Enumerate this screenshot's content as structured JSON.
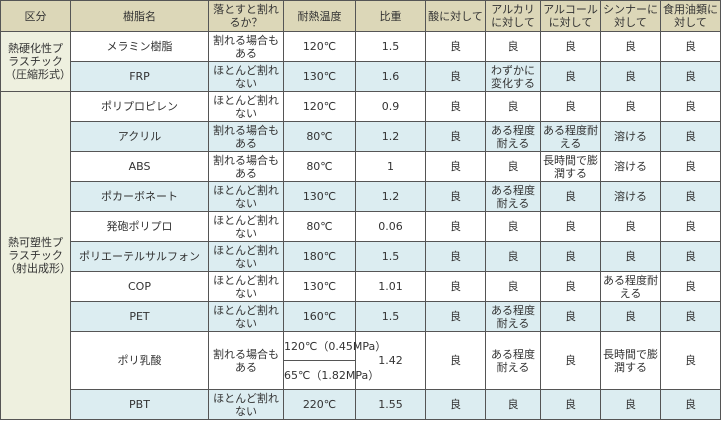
{
  "headers": [
    "区分",
    "樹脂名",
    "落とすと割れるか？",
    "耐熱温度",
    "比重",
    "酸に対して",
    "アルカリに対して",
    "アルコールに対して",
    "シンナーに対して",
    "食用油類に対して"
  ],
  "categories": [
    {
      "label": "熱硬化性プラスチック（圧縮形式）",
      "rows": 2
    },
    {
      "label": "熱可塑性プラスチック（射出成形）",
      "rows": 10
    }
  ],
  "rows": [
    {
      "name": "メラミン樹脂",
      "drop": "割れる場合もある",
      "temp": "120℃",
      "sg": "1.5",
      "acid": "良",
      "alkali": "良",
      "alcohol": "良",
      "thinner": "良",
      "oil": "良"
    },
    {
      "name": "FRP",
      "drop": "ほとんど割れない",
      "temp": "130℃",
      "sg": "1.6",
      "acid": "良",
      "alkali": "わずかに変化する",
      "alcohol": "良",
      "thinner": "良",
      "oil": "良"
    },
    {
      "name": "ポリプロピレン",
      "drop": "ほとんど割れない",
      "temp": "120℃",
      "sg": "0.9",
      "acid": "良",
      "alkali": "良",
      "alcohol": "良",
      "thinner": "良",
      "oil": "良"
    },
    {
      "name": "アクリル",
      "drop": "割れる場合もある",
      "temp": "80℃",
      "sg": "1.2",
      "acid": "良",
      "alkali": "ある程度耐える",
      "alcohol": "ある程度耐える",
      "thinner": "溶ける",
      "oil": "良"
    },
    {
      "name": "ABS",
      "drop": "割れる場合もある",
      "temp": "80℃",
      "sg": "1",
      "acid": "良",
      "alkali": "良",
      "alcohol": "長時間で膨潤する",
      "thinner": "溶ける",
      "oil": "良"
    },
    {
      "name": "ポカーボネート",
      "drop": "ほとんど割れない",
      "temp": "130℃",
      "sg": "1.2",
      "acid": "良",
      "alkali": "ある程度耐える",
      "alcohol": "良",
      "thinner": "溶ける",
      "oil": "良"
    },
    {
      "name": "発砲ポリプロ",
      "drop": "ほとんど割れない",
      "temp": "80℃",
      "sg": "0.06",
      "acid": "良",
      "alkali": "良",
      "alcohol": "良",
      "thinner": "良",
      "oil": "良"
    },
    {
      "name": "ポリエーテルサルフォン",
      "drop": "ほとんど割れない",
      "temp": "180℃",
      "sg": "1.5",
      "acid": "良",
      "alkali": "良",
      "alcohol": "良",
      "thinner": "良",
      "oil": "良"
    },
    {
      "name": "COP",
      "drop": "ほとんど割れない",
      "temp": "130℃",
      "sg": "1.01",
      "acid": "良",
      "alkali": "良",
      "alcohol": "良",
      "thinner": "ある程度耐える",
      "oil": "良"
    },
    {
      "name": "PET",
      "drop": "ほとんど割れない",
      "temp": "160℃",
      "sg": "1.5",
      "acid": "良",
      "alkali": "ある程度耐える",
      "alcohol": "良",
      "thinner": "良",
      "oil": "良"
    },
    {
      "name": "ポリ乳酸",
      "drop": "割れる場合もある",
      "temp": "120℃（0.45MPa）",
      "temp2": "65℃（1.82MPa）",
      "sg": "1.42",
      "acid": "良",
      "alkali": "ある程度耐える",
      "alcohol": "良",
      "thinner": "長時間で膨潤する",
      "oil": "良"
    },
    {
      "name": "PBT",
      "drop": "ほとんど割れない",
      "temp": "220℃",
      "sg": "1.55",
      "acid": "良",
      "alkali": "良",
      "alcohol": "良",
      "thinner": "良",
      "oil": "良"
    }
  ],
  "colors": {
    "header": "#dcd7b8",
    "category": "#eef0df",
    "stripe": "#dcedf1",
    "border": "#555555"
  }
}
